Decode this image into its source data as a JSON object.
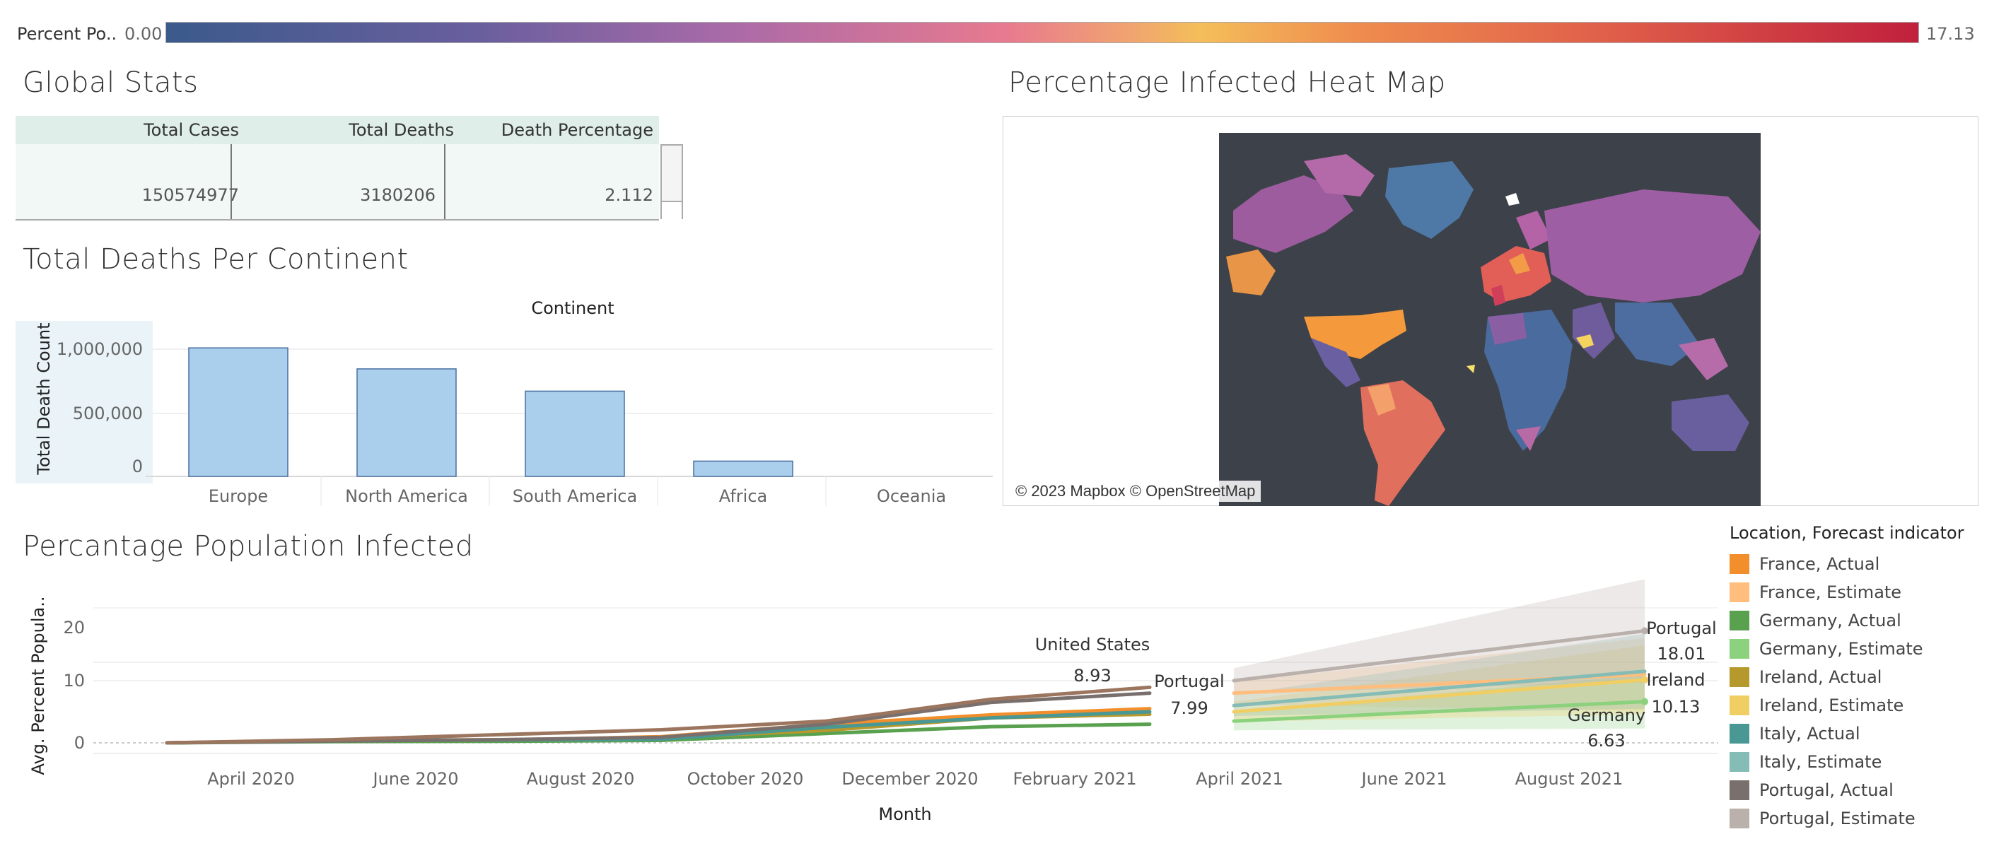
{
  "color_legend": {
    "label": "Percent Po..",
    "min": "0.00",
    "max": "17.13"
  },
  "global_stats": {
    "title": "Global Stats",
    "headers": [
      "Total Cases",
      "Total Deaths",
      "Death Percentage"
    ],
    "values": [
      "150574977",
      "3180206",
      "2.112"
    ]
  },
  "deaths_chart": {
    "title": "Total Deaths Per Continent",
    "header": "Continent",
    "ylabel": "Total Death Count",
    "ticks": [
      "1,000,000",
      "500,000",
      "0"
    ]
  },
  "heat_map": {
    "title": "Percentage Infected Heat Map",
    "credit": "© 2023 Mapbox © OpenStreetMap"
  },
  "infection_chart": {
    "title": "Percantage Population Infected",
    "ylabel": "Avg. Percent Popula..",
    "xlabel": "Month",
    "yticks": [
      "20",
      "10",
      "0"
    ],
    "xticks": [
      "April 2020",
      "June 2020",
      "August 2020",
      "October 2020",
      "December 2020",
      "February 2021",
      "April 2021",
      "June 2021",
      "August 2021"
    ],
    "labels": {
      "us_name": "United States",
      "us_value": "8.93",
      "pt_actual_name": "Portugal",
      "pt_actual_value": "7.99",
      "pt_est_name": "Portugal",
      "pt_est_value": "18.01",
      "ie_est_name": "Ireland",
      "ie_est_value": "10.13",
      "de_est_name": "Germany",
      "de_est_value": "6.63"
    }
  },
  "legend": {
    "title": "Location, Forecast indicator",
    "items": [
      {
        "label": "France, Actual",
        "color": "#f28e2b"
      },
      {
        "label": "France, Estimate",
        "color": "#ffbe7d"
      },
      {
        "label": "Germany, Actual",
        "color": "#59a14f"
      },
      {
        "label": "Germany, Estimate",
        "color": "#8cd17d"
      },
      {
        "label": "Ireland, Actual",
        "color": "#b6992d"
      },
      {
        "label": "Ireland, Estimate",
        "color": "#f1ce63"
      },
      {
        "label": "Italy, Actual",
        "color": "#499894"
      },
      {
        "label": "Italy, Estimate",
        "color": "#86bcb6"
      },
      {
        "label": "Portugal, Actual",
        "color": "#79706e"
      },
      {
        "label": "Portugal, Estimate",
        "color": "#bab0ac"
      }
    ]
  },
  "chart_data": [
    {
      "type": "bar",
      "title": "Total Deaths Per Continent",
      "xlabel": "Continent",
      "ylabel": "Total Death Count",
      "categories": [
        "Europe",
        "North America",
        "South America",
        "Africa",
        "Oceania"
      ],
      "values": [
        1010000,
        845000,
        670000,
        120000,
        1000
      ],
      "ylim": [
        0,
        1000000
      ],
      "bar_color": "#aacfec"
    },
    {
      "type": "line",
      "title": "Percantage Population Infected",
      "xlabel": "Month",
      "ylabel": "Avg. Percent Popula..",
      "ylim": [
        0,
        25
      ],
      "series": [
        {
          "name": "France, Actual",
          "color": "#f28e2b",
          "x": [
            "2020-03",
            "2020-05",
            "2020-07",
            "2020-09",
            "2020-11",
            "2021-01",
            "2021-03"
          ],
          "values": [
            0,
            0.3,
            0.4,
            1.0,
            3.0,
            4.5,
            5.5
          ]
        },
        {
          "name": "Germany, Actual",
          "color": "#59a14f",
          "x": [
            "2020-03",
            "2020-05",
            "2020-07",
            "2020-09",
            "2020-11",
            "2021-01",
            "2021-03"
          ],
          "values": [
            0,
            0.2,
            0.25,
            0.4,
            1.5,
            2.6,
            3.0
          ]
        },
        {
          "name": "Ireland, Actual",
          "color": "#b6992d",
          "x": [
            "2020-03",
            "2020-05",
            "2020-07",
            "2020-09",
            "2020-11",
            "2021-01",
            "2021-03"
          ],
          "values": [
            0,
            0.4,
            0.5,
            0.8,
            2.0,
            4.0,
            4.6
          ]
        },
        {
          "name": "Italy, Actual",
          "color": "#499894",
          "x": [
            "2020-03",
            "2020-05",
            "2020-07",
            "2020-09",
            "2020-11",
            "2021-01",
            "2021-03"
          ],
          "values": [
            0,
            0.4,
            0.45,
            0.6,
            2.5,
            4.0,
            5.0
          ]
        },
        {
          "name": "Portugal, Actual",
          "color": "#79706e",
          "x": [
            "2020-03",
            "2020-05",
            "2020-07",
            "2020-09",
            "2020-11",
            "2021-01",
            "2021-03"
          ],
          "values": [
            0,
            0.3,
            0.5,
            0.9,
            3.0,
            6.5,
            7.99
          ]
        },
        {
          "name": "United States",
          "color": "#9c755f",
          "x": [
            "2020-03",
            "2020-05",
            "2020-07",
            "2020-09",
            "2020-11",
            "2021-01",
            "2021-03"
          ],
          "values": [
            0,
            0.5,
            1.3,
            2.1,
            3.5,
            7.0,
            8.93
          ]
        },
        {
          "name": "France, Estimate",
          "color": "#ffbe7d",
          "x": [
            "2021-04",
            "2021-09"
          ],
          "values": [
            8.0,
            11.0
          ]
        },
        {
          "name": "Germany, Estimate",
          "color": "#8cd17d",
          "x": [
            "2021-04",
            "2021-09"
          ],
          "values": [
            3.5,
            6.63
          ]
        },
        {
          "name": "Ireland, Estimate",
          "color": "#f1ce63",
          "x": [
            "2021-04",
            "2021-09"
          ],
          "values": [
            5.0,
            10.13
          ]
        },
        {
          "name": "Italy, Estimate",
          "color": "#86bcb6",
          "x": [
            "2021-04",
            "2021-09"
          ],
          "values": [
            6.0,
            11.5
          ]
        },
        {
          "name": "Portugal, Estimate",
          "color": "#bab0ac",
          "x": [
            "2021-04",
            "2021-09"
          ],
          "values": [
            10.0,
            18.01
          ]
        }
      ]
    }
  ]
}
